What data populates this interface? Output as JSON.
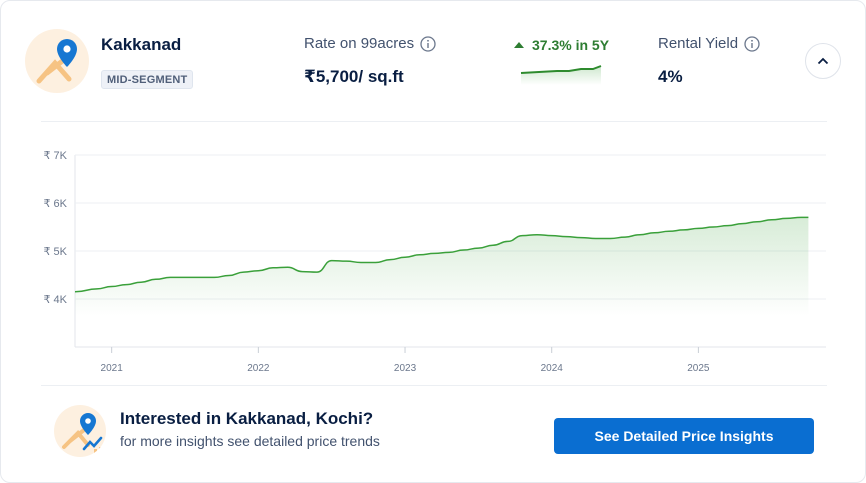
{
  "locality": {
    "name": "Kakkanad",
    "segment": "MID-SEGMENT",
    "icon": "map-pin-icon"
  },
  "rate": {
    "label": "Rate on 99acres",
    "value": "₹5,700/ sq.ft"
  },
  "growth": {
    "text": "37.3% in 5Y",
    "direction": "up",
    "color": "#2e7d32"
  },
  "rental_yield": {
    "label": "Rental Yield",
    "value": "4%"
  },
  "chart_data": {
    "type": "area",
    "color": "#3aa03a",
    "x": [
      2020.75,
      2020.9,
      2021.0,
      2021.1,
      2021.2,
      2021.3,
      2021.4,
      2021.5,
      2021.6,
      2021.7,
      2021.8,
      2021.9,
      2022.0,
      2022.1,
      2022.2,
      2022.3,
      2022.4,
      2022.5,
      2022.6,
      2022.7,
      2022.8,
      2022.9,
      2023.0,
      2023.1,
      2023.2,
      2023.3,
      2023.4,
      2023.5,
      2023.6,
      2023.7,
      2023.8,
      2023.9,
      2024.0,
      2024.1,
      2024.2,
      2024.3,
      2024.4,
      2024.5,
      2024.6,
      2024.7,
      2024.8,
      2024.9,
      2025.0,
      2025.1,
      2025.2,
      2025.3,
      2025.4,
      2025.5,
      2025.6,
      2025.7,
      2025.75
    ],
    "y": [
      4150,
      4210,
      4260,
      4300,
      4350,
      4410,
      4450,
      4450,
      4450,
      4450,
      4490,
      4560,
      4590,
      4650,
      4660,
      4570,
      4560,
      4800,
      4790,
      4760,
      4760,
      4820,
      4870,
      4920,
      4950,
      4970,
      5020,
      5060,
      5120,
      5200,
      5320,
      5340,
      5320,
      5300,
      5280,
      5260,
      5260,
      5290,
      5340,
      5380,
      5410,
      5440,
      5470,
      5500,
      5530,
      5570,
      5610,
      5650,
      5680,
      5700,
      5700
    ],
    "y_ticks": [
      "₹ 7K",
      "₹ 6K",
      "₹ 5K",
      "₹ 4K"
    ],
    "y_tick_values": [
      7000,
      6000,
      5000,
      4000
    ],
    "x_ticks": [
      "2021",
      "2022",
      "2023",
      "2024",
      "2025"
    ],
    "x_tick_values": [
      2021,
      2022,
      2023,
      2024,
      2025
    ],
    "ylim": [
      3000,
      7000
    ],
    "xlim": [
      2020.75,
      2025.87
    ],
    "grid": true
  },
  "cta": {
    "title": "Interested in Kakkanad, Kochi?",
    "subtitle": "for more insights see detailed price trends",
    "button_label": "See Detailed Price Insights",
    "icon": "map-pin-trend-icon"
  }
}
